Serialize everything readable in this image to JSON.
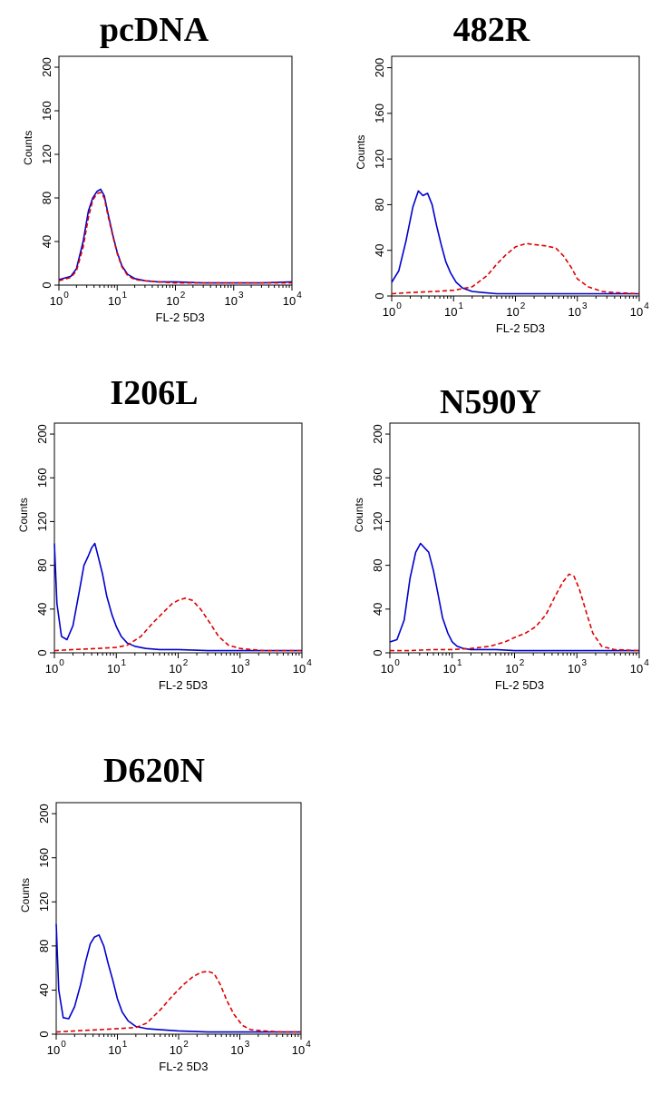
{
  "chart_data": [
    {
      "type": "line",
      "title": "pcDNA",
      "xlabel": "FL-2  5D3",
      "ylabel": "Counts",
      "x_scale": "log",
      "xlim": [
        1,
        10000
      ],
      "ylim": [
        0,
        210
      ],
      "xticks": [
        1,
        10,
        100,
        1000,
        10000
      ],
      "xtick_base": "10",
      "xtick_exponents": [
        "0",
        "1",
        "2",
        "3",
        "4"
      ],
      "yticks": [
        "0",
        "40",
        "80",
        "120",
        "160",
        "200"
      ],
      "series": [
        {
          "color": "#0000cc",
          "style": "solid",
          "x": [
            1,
            1.6,
            2,
            2.6,
            3.2,
            3.8,
            4.5,
            5.2,
            6,
            7,
            8.5,
            10,
            12,
            15,
            20,
            30,
            50,
            100,
            300,
            1000,
            3000,
            10000
          ],
          "y": [
            5,
            8,
            15,
            40,
            68,
            80,
            86,
            88,
            82,
            65,
            45,
            30,
            18,
            10,
            6,
            4,
            3,
            3,
            2,
            2,
            2,
            3
          ]
        },
        {
          "color": "#dd0000",
          "style": "dashed",
          "x": [
            1,
            1.6,
            2,
            2.6,
            3.2,
            3.8,
            4.5,
            5.2,
            6,
            7,
            8.5,
            10,
            12,
            15,
            20,
            30,
            50,
            100,
            300,
            1000,
            3000,
            10000
          ],
          "y": [
            4,
            7,
            13,
            35,
            62,
            78,
            84,
            85,
            80,
            63,
            44,
            29,
            17,
            9,
            5,
            4,
            3,
            2,
            2,
            2,
            2,
            2
          ]
        }
      ]
    },
    {
      "type": "line",
      "title": "482R",
      "xlabel": "FL-2  5D3",
      "ylabel": "Counts",
      "x_scale": "log",
      "xlim": [
        1,
        10000
      ],
      "ylim": [
        0,
        210
      ],
      "xticks": [
        1,
        10,
        100,
        1000,
        10000
      ],
      "xtick_base": "10",
      "xtick_exponents": [
        "0",
        "1",
        "2",
        "3",
        "4"
      ],
      "yticks": [
        "0",
        "40",
        "80",
        "120",
        "160",
        "200"
      ],
      "series": [
        {
          "color": "#0000cc",
          "style": "solid",
          "x": [
            1,
            1.3,
            1.7,
            2.2,
            2.7,
            3.2,
            3.8,
            4.5,
            5.3,
            6.3,
            7.5,
            9,
            11,
            14,
            20,
            30,
            50,
            100,
            300,
            1000,
            3000,
            10000
          ],
          "y": [
            12,
            22,
            48,
            78,
            92,
            88,
            90,
            80,
            62,
            45,
            30,
            20,
            12,
            7,
            4,
            3,
            2,
            2,
            2,
            2,
            2,
            2
          ]
        },
        {
          "color": "#dd0000",
          "style": "dashed",
          "x": [
            1,
            2,
            5,
            10,
            20,
            35,
            50,
            70,
            100,
            150,
            200,
            300,
            450,
            600,
            800,
            1000,
            1500,
            2500,
            4000,
            10000
          ],
          "y": [
            2,
            3,
            4,
            5,
            8,
            18,
            28,
            36,
            43,
            46,
            45,
            44,
            42,
            35,
            25,
            15,
            8,
            4,
            3,
            2
          ]
        }
      ]
    },
    {
      "type": "line",
      "title": "I206L",
      "xlabel": "FL-2  5D3",
      "ylabel": "Counts",
      "x_scale": "log",
      "xlim": [
        1,
        10000
      ],
      "ylim": [
        0,
        210
      ],
      "xticks": [
        1,
        10,
        100,
        1000,
        10000
      ],
      "xtick_base": "10",
      "xtick_exponents": [
        "0",
        "1",
        "2",
        "3",
        "4"
      ],
      "yticks": [
        "0",
        "40",
        "80",
        "120",
        "160",
        "200"
      ],
      "series": [
        {
          "color": "#0000cc",
          "style": "solid",
          "x": [
            1,
            1.1,
            1.3,
            1.6,
            2,
            2.5,
            3,
            3.5,
            4,
            4.5,
            5,
            6,
            7,
            8.5,
            10,
            12,
            15,
            20,
            30,
            50,
            100,
            300,
            1000,
            3000,
            10000
          ],
          "y": [
            100,
            45,
            15,
            12,
            25,
            55,
            80,
            88,
            96,
            100,
            90,
            72,
            52,
            35,
            24,
            15,
            9,
            6,
            4,
            3,
            3,
            2,
            2,
            2,
            2
          ]
        },
        {
          "color": "#dd0000",
          "style": "dashed",
          "x": [
            1,
            2,
            5,
            10,
            15,
            25,
            40,
            60,
            80,
            100,
            130,
            170,
            230,
            320,
            450,
            650,
            1000,
            1500,
            2500,
            5000,
            10000
          ],
          "y": [
            2,
            3,
            4,
            5,
            7,
            15,
            28,
            38,
            45,
            48,
            50,
            48,
            40,
            28,
            15,
            7,
            4,
            3,
            2,
            2,
            2
          ]
        }
      ]
    },
    {
      "type": "line",
      "title": "N590Y",
      "xlabel": "FL-2  5D3",
      "ylabel": "Counts",
      "x_scale": "log",
      "xlim": [
        1,
        10000
      ],
      "ylim": [
        0,
        210
      ],
      "xticks": [
        1,
        10,
        100,
        1000,
        10000
      ],
      "xtick_base": "10",
      "xtick_exponents": [
        "0",
        "1",
        "2",
        "3",
        "4"
      ],
      "yticks": [
        "0",
        "40",
        "80",
        "120",
        "160",
        "200"
      ],
      "series": [
        {
          "color": "#0000cc",
          "style": "solid",
          "x": [
            1,
            1.3,
            1.7,
            2.1,
            2.6,
            3.1,
            3.6,
            4.2,
            5,
            6,
            7,
            8.5,
            10,
            12,
            15,
            20,
            30,
            50,
            100,
            300,
            1000,
            3000,
            10000
          ],
          "y": [
            10,
            12,
            30,
            68,
            92,
            100,
            96,
            92,
            75,
            52,
            32,
            18,
            10,
            6,
            4,
            3,
            3,
            3,
            2,
            2,
            2,
            2,
            2
          ]
        },
        {
          "color": "#dd0000",
          "style": "dashed",
          "x": [
            1,
            2,
            5,
            10,
            20,
            40,
            70,
            100,
            150,
            220,
            320,
            450,
            600,
            750,
            900,
            1100,
            1400,
            1800,
            2500,
            4000,
            10000
          ],
          "y": [
            2,
            2,
            3,
            3,
            4,
            6,
            10,
            14,
            18,
            24,
            35,
            52,
            65,
            72,
            70,
            58,
            38,
            18,
            6,
            3,
            2
          ]
        }
      ]
    },
    {
      "type": "line",
      "title": "D620N",
      "xlabel": "FL-2  5D3",
      "ylabel": "Counts",
      "x_scale": "log",
      "xlim": [
        1,
        10000
      ],
      "ylim": [
        0,
        210
      ],
      "xticks": [
        1,
        10,
        100,
        1000,
        10000
      ],
      "xtick_base": "10",
      "xtick_exponents": [
        "0",
        "1",
        "2",
        "3",
        "4"
      ],
      "yticks": [
        "0",
        "40",
        "80",
        "120",
        "160",
        "200"
      ],
      "series": [
        {
          "color": "#0000cc",
          "style": "solid",
          "x": [
            1,
            1.1,
            1.3,
            1.6,
            2,
            2.5,
            3,
            3.6,
            4.2,
            5,
            6,
            7,
            8.5,
            10,
            12,
            15,
            20,
            30,
            50,
            100,
            300,
            1000,
            3000,
            10000
          ],
          "y": [
            100,
            40,
            15,
            14,
            25,
            45,
            65,
            82,
            88,
            90,
            80,
            65,
            48,
            32,
            20,
            12,
            7,
            5,
            4,
            3,
            2,
            2,
            2,
            2
          ]
        },
        {
          "color": "#dd0000",
          "style": "dashed",
          "x": [
            1,
            2,
            5,
            10,
            20,
            30,
            50,
            80,
            120,
            170,
            230,
            300,
            380,
            480,
            620,
            800,
            1100,
            1500,
            2500,
            5000,
            10000
          ],
          "y": [
            2,
            3,
            4,
            5,
            6,
            10,
            22,
            35,
            45,
            52,
            56,
            57,
            55,
            45,
            30,
            18,
            8,
            4,
            3,
            2,
            2
          ]
        }
      ]
    }
  ]
}
